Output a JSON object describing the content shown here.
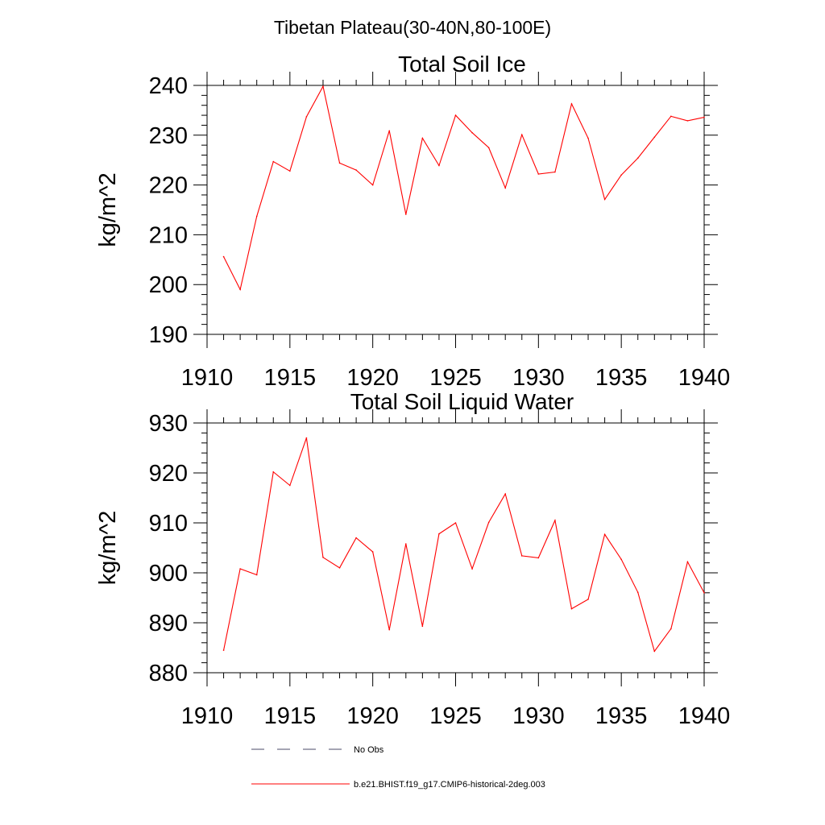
{
  "figure": {
    "title": "Tibetan Plateau(30-40N,80-100E)"
  },
  "chart_data": [
    {
      "type": "line",
      "title": "Total Soil Ice",
      "xlabel": "",
      "ylabel": "kg/m^2",
      "xlim": [
        1910,
        1940
      ],
      "ylim": [
        190,
        240
      ],
      "xticks": [
        1910,
        1915,
        1920,
        1925,
        1930,
        1935,
        1940
      ],
      "yticks": [
        190,
        200,
        210,
        220,
        230,
        240
      ],
      "grid": false,
      "series": [
        {
          "name": "b.e21.BHIST.f19_g17.CMIP6-historical-2deg.003",
          "color": "#ff0000",
          "x": [
            1911,
            1912,
            1913,
            1914,
            1915,
            1916,
            1917,
            1918,
            1919,
            1920,
            1921,
            1922,
            1923,
            1924,
            1925,
            1926,
            1927,
            1928,
            1929,
            1930,
            1931,
            1932,
            1933,
            1934,
            1935,
            1936,
            1937,
            1938,
            1939,
            1940
          ],
          "values": [
            205.6,
            199.0,
            213.7,
            224.7,
            222.8,
            233.7,
            239.8,
            224.4,
            223.0,
            220.0,
            230.9,
            214.1,
            229.4,
            223.9,
            234.0,
            230.5,
            227.5,
            219.4,
            230.1,
            222.2,
            222.6,
            236.3,
            229.4,
            217.1,
            222.0,
            225.4,
            229.6,
            233.8,
            232.9,
            233.6
          ]
        }
      ]
    },
    {
      "type": "line",
      "title": "Total Soil Liquid Water",
      "xlabel": "",
      "ylabel": "kg/m^2",
      "xlim": [
        1910,
        1940
      ],
      "ylim": [
        880,
        930
      ],
      "xticks": [
        1910,
        1915,
        1920,
        1925,
        1930,
        1935,
        1940
      ],
      "yticks": [
        880,
        890,
        900,
        910,
        920,
        930
      ],
      "grid": false,
      "series": [
        {
          "name": "b.e21.BHIST.f19_g17.CMIP6-historical-2deg.003",
          "color": "#ff0000",
          "x": [
            1911,
            1912,
            1913,
            1914,
            1915,
            1916,
            1917,
            1918,
            1919,
            1920,
            1921,
            1922,
            1923,
            1924,
            1925,
            1926,
            1927,
            1928,
            1929,
            1930,
            1931,
            1932,
            1933,
            1934,
            1935,
            1936,
            1937,
            1938,
            1939,
            1940
          ],
          "values": [
            884.5,
            900.8,
            899.6,
            920.2,
            917.5,
            927.0,
            903.1,
            901.0,
            907.0,
            904.2,
            888.6,
            905.8,
            889.3,
            907.8,
            910.0,
            900.8,
            910.1,
            915.8,
            903.4,
            903.0,
            910.5,
            892.8,
            894.7,
            907.7,
            902.7,
            896.1,
            884.3,
            888.8,
            902.2,
            896.0
          ]
        }
      ]
    }
  ],
  "legend": {
    "placement": "bottom",
    "items": [
      {
        "label": "No Obs",
        "color": "#4a4a6a",
        "dash": true
      },
      {
        "label": "b.e21.BHIST.f19_g17.CMIP6-historical-2deg.003",
        "color": "#ff0000",
        "dash": false
      }
    ]
  }
}
